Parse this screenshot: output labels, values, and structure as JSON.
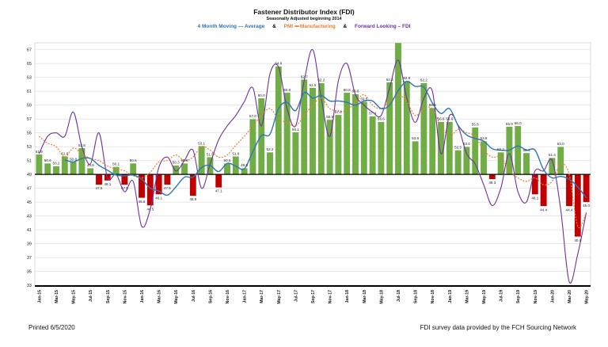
{
  "header": {
    "title": "Fastener Distributor Index (FDI)",
    "subtitle": "Seasonally Adjusted beginning 2014",
    "legend": [
      {
        "name": "4 Month Moving — Average",
        "color": "#2E75B6"
      },
      {
        "name": "PMI",
        "dash": "••••",
        "suffix": "Manufacturing",
        "color": "#ED7D31"
      },
      {
        "name": "Forward Looking – FDI",
        "color": "#7030A0"
      }
    ],
    "separator": "&"
  },
  "footer": {
    "printed": "Printed 6/5/2020",
    "source": "FDI survey data provided by the FCH Sourcing Network"
  },
  "chart_data": {
    "type": "bar",
    "baseline": 49,
    "ylim": [
      33,
      68
    ],
    "yticks": [
      33,
      35,
      37,
      39,
      41,
      43,
      45,
      47,
      49,
      51,
      53,
      55,
      57,
      59,
      61,
      63,
      65,
      67
    ],
    "colors": {
      "above": "#70AD47",
      "below": "#C00000",
      "ma": "#2E75B6",
      "pmi": "#ED7D31",
      "fwd": "#7030A0"
    },
    "x_labels": [
      "Jan-15",
      "Mar-15",
      "May-15",
      "Jul-15",
      "Sep-15",
      "Nov-15",
      "Jan-16",
      "Mar-16",
      "May-16",
      "Jul-16",
      "Sep-16",
      "Nov-16",
      "Jan-17",
      "Mar-17",
      "May-17",
      "Jul-17",
      "Sep-17",
      "Nov-17",
      "Jan-18",
      "Mar-18",
      "May-18",
      "Jul-18",
      "Sep-18",
      "Nov-18",
      "Jan-19",
      "Mar-19",
      "May-19",
      "Jul-19",
      "Sep-19",
      "Nov-19",
      "Jan-20",
      "Mar-20",
      "May-20"
    ],
    "bars": [
      51.9,
      50.6,
      50.2,
      51.6,
      50.8,
      52.8,
      49.9,
      47.5,
      48.1,
      50.1,
      47.5,
      50.6,
      45.6,
      44.5,
      46.1,
      47.5,
      50.3,
      50.6,
      45.9,
      53.1,
      51.5,
      47.1,
      50.6,
      51.6,
      49.9,
      57.0,
      60.0,
      52.2,
      64.6,
      60.8,
      55.1,
      62.7,
      61.5,
      62.2,
      56.9,
      57.6,
      60.8,
      60.6,
      59.5,
      57.4,
      56.6,
      62.3,
      68.0,
      62.5,
      53.8,
      62.2,
      58.6,
      56.6,
      56.6,
      52.5,
      53.0,
      55.8,
      53.8,
      48.3,
      52.2,
      55.9,
      56.0,
      52.1,
      46.1,
      44.4,
      51.4,
      53.0,
      44.4,
      40.0,
      45.0
    ],
    "labels": [
      51.9,
      50.6,
      50.2,
      51.6,
      50.8,
      52.8,
      49.9,
      47.5,
      48.1,
      50.1,
      47.5,
      50.6,
      45.6,
      44.5,
      46.1,
      47.5,
      50.3,
      50.6,
      45.9,
      53.1,
      51.5,
      47.1,
      50.6,
      51.6,
      49.9,
      57.0,
      60.0,
      52.2,
      64.6,
      60.8,
      55.1,
      62.7,
      61.5,
      62.2,
      56.9,
      57.6,
      60.8,
      60.6,
      59.5,
      57.4,
      56.6,
      62.3,
      null,
      62.5,
      53.8,
      62.2,
      58.6,
      56.6,
      56.6,
      52.5,
      53.0,
      55.8,
      53.8,
      48.3,
      52.2,
      55.9,
      56.0,
      52.1,
      46.1,
      44.4,
      51.4,
      53.0,
      44.4,
      40.0,
      45.0
    ],
    "ma": [
      null,
      null,
      null,
      51.1,
      50.8,
      51.3,
      51.3,
      50.3,
      49.6,
      48.9,
      48.8,
      48.9,
      48.3,
      47.0,
      46.6,
      46.0,
      47.2,
      48.6,
      48.6,
      50.0,
      50.3,
      49.4,
      50.6,
      50.2,
      49.8,
      52.3,
      54.6,
      54.8,
      58.5,
      59.4,
      58.2,
      60.8,
      60.0,
      60.4,
      59.6,
      59.6,
      59.4,
      59.0,
      59.6,
      59.6,
      58.5,
      59.0,
      61.1,
      62.4,
      61.7,
      61.6,
      59.3,
      57.8,
      58.5,
      56.1,
      54.7,
      54.2,
      53.8,
      52.7,
      52.5,
      52.5,
      53.1,
      52.5,
      52.5,
      49.7,
      48.5,
      48.7,
      48.3,
      47.2,
      45.6
    ],
    "pmi": [
      54.5,
      53.5,
      53.0,
      51.5,
      52.8,
      52.0,
      51.3,
      51.0,
      50.2,
      49.8,
      49.5,
      48.8,
      48.5,
      49.3,
      50.8,
      51.0,
      51.8,
      51.0,
      51.5,
      53.0,
      52.5,
      51.5,
      51.8,
      53.2,
      54.5,
      56.0,
      57.5,
      58.5,
      57.0,
      56.5,
      56.0,
      57.5,
      59.0,
      60.0,
      58.5,
      58.2,
      58.2,
      59.5,
      60.5,
      59.0,
      58.5,
      59.5,
      60.5,
      59.5,
      57.5,
      58.5,
      58.5,
      56.0,
      54.5,
      55.5,
      55.0,
      54.5,
      52.5,
      51.5,
      51.5,
      49.5,
      48.5,
      48.0,
      48.5,
      47.5,
      48.0,
      50.5,
      49.0,
      41.5,
      43.5
    ],
    "fwd": [
      52.0,
      54.5,
      55.0,
      54.5,
      58.0,
      53.0,
      50.5,
      55.0,
      48.5,
      49.0,
      46.5,
      48.0,
      41.5,
      44.0,
      50.0,
      51.5,
      49.5,
      51.0,
      52.5,
      47.0,
      50.5,
      54.0,
      56.0,
      57.5,
      59.5,
      61.5,
      56.0,
      63.5,
      64.5,
      58.5,
      56.0,
      62.5,
      67.0,
      60.0,
      54.5,
      62.5,
      65.0,
      60.5,
      59.0,
      58.0,
      57.5,
      61.5,
      65.5,
      60.0,
      56.5,
      60.0,
      61.0,
      52.0,
      57.5,
      56.0,
      52.0,
      50.5,
      47.5,
      44.5,
      47.0,
      52.0,
      46.5,
      45.0,
      49.5,
      49.5,
      51.0,
      44.0,
      33.5,
      37.5,
      43.5
    ]
  }
}
